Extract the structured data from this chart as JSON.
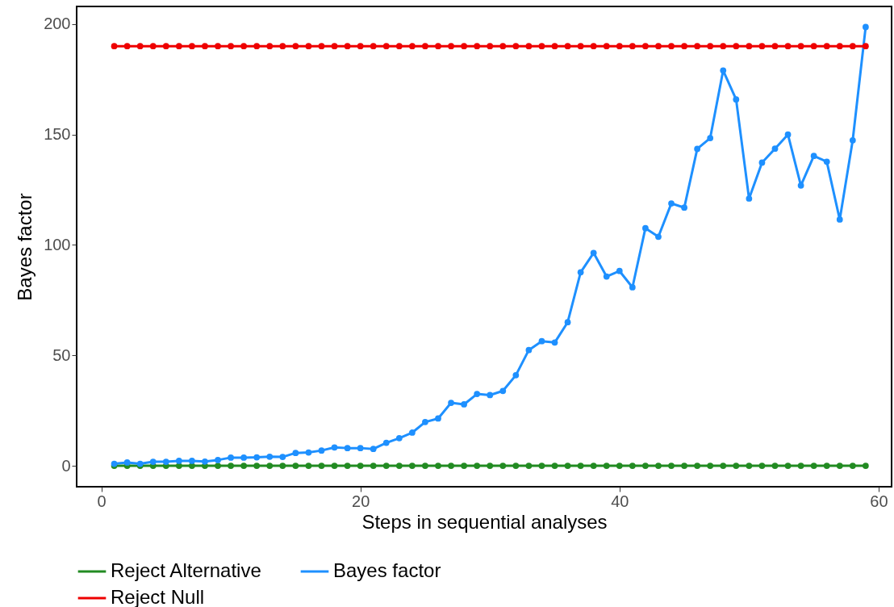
{
  "chart_data": {
    "type": "line",
    "xlabel": "Steps in sequential analyses",
    "ylabel": "Bayes factor",
    "x": [
      1,
      2,
      3,
      4,
      5,
      6,
      7,
      8,
      9,
      10,
      11,
      12,
      13,
      14,
      15,
      16,
      17,
      18,
      19,
      20,
      21,
      22,
      23,
      24,
      25,
      26,
      27,
      28,
      29,
      30,
      31,
      32,
      33,
      34,
      35,
      36,
      37,
      38,
      39,
      40,
      41,
      42,
      43,
      44,
      45,
      46,
      47,
      48,
      49,
      50,
      51,
      52,
      53,
      54,
      55,
      56,
      57,
      58,
      59
    ],
    "series": [
      {
        "name": "Reject Alternative",
        "color": "#228b22",
        "values": [
          0,
          0,
          0,
          0,
          0,
          0,
          0,
          0,
          0,
          0,
          0,
          0,
          0,
          0,
          0,
          0,
          0,
          0,
          0,
          0,
          0,
          0,
          0,
          0,
          0,
          0,
          0,
          0,
          0,
          0,
          0,
          0,
          0,
          0,
          0,
          0,
          0,
          0,
          0,
          0,
          0,
          0,
          0,
          0,
          0,
          0,
          0,
          0,
          0,
          0,
          0,
          0,
          0,
          0,
          0,
          0,
          0,
          0,
          0
        ]
      },
      {
        "name": "Bayes factor",
        "color": "#1e90ff",
        "values": [
          0.9,
          1.5,
          0.9,
          1.8,
          1.8,
          2.2,
          2.2,
          1.9,
          2.6,
          3.7,
          3.7,
          3.8,
          4.1,
          4,
          5.8,
          6,
          6.9,
          8.3,
          8,
          8,
          7.6,
          10.4,
          12.5,
          15,
          19.8,
          21.4,
          28.5,
          27.8,
          32.5,
          32,
          33.9,
          41,
          52.4,
          56.4,
          55.8,
          65,
          87.6,
          96.4,
          85.7,
          88.2,
          80.8,
          107.6,
          103.7,
          118.8,
          116.9,
          143.5,
          148.4,
          179,
          165.9,
          121,
          137.3,
          143.6,
          150,
          126.9,
          140.3,
          137.7,
          111.5,
          147.4,
          198.7
        ]
      },
      {
        "name": "Reject Null",
        "color": "#ee0000",
        "values": [
          190,
          190,
          190,
          190,
          190,
          190,
          190,
          190,
          190,
          190,
          190,
          190,
          190,
          190,
          190,
          190,
          190,
          190,
          190,
          190,
          190,
          190,
          190,
          190,
          190,
          190,
          190,
          190,
          190,
          190,
          190,
          190,
          190,
          190,
          190,
          190,
          190,
          190,
          190,
          190,
          190,
          190,
          190,
          190,
          190,
          190,
          190,
          190,
          190,
          190,
          190,
          190,
          190,
          190,
          190,
          190,
          190,
          190,
          190
        ]
      }
    ],
    "xlim": [
      -1.9,
      61
    ],
    "xticks": [
      0,
      20,
      40,
      60
    ],
    "ylim": [
      -9.5,
      208
    ],
    "yticks": [
      0,
      50,
      100,
      150,
      200
    ],
    "grid": false,
    "legend": "bottom",
    "marker": "circle",
    "line_style": "solid"
  }
}
